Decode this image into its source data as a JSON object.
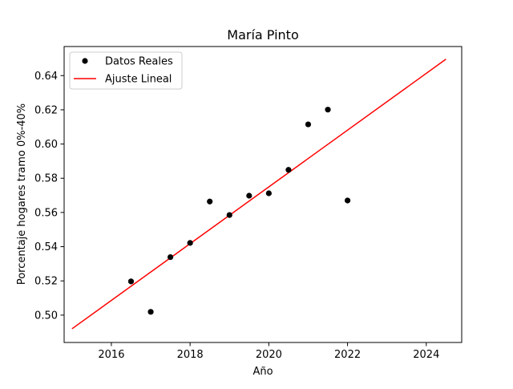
{
  "chart_data": {
    "type": "scatter",
    "title": "María Pinto",
    "xlabel": "Año",
    "ylabel": "Porcentaje hogares tramo 0%-40%",
    "xlim": [
      2014.8,
      2024.9
    ],
    "ylim": [
      0.484,
      0.657
    ],
    "xticks": [
      2016,
      2018,
      2020,
      2022,
      2024
    ],
    "yticks": [
      0.5,
      0.52,
      0.54,
      0.56,
      0.58,
      0.6,
      0.62,
      0.64
    ],
    "xtick_labels": [
      "2016",
      "2018",
      "2020",
      "2022",
      "2024"
    ],
    "ytick_labels": [
      "0.50",
      "0.52",
      "0.54",
      "0.56",
      "0.58",
      "0.60",
      "0.62",
      "0.64"
    ],
    "grid": false,
    "legend_position": "top-left",
    "series": [
      {
        "name": "Datos Reales",
        "kind": "scatter",
        "color": "#000000",
        "x": [
          2016.5,
          2017.0,
          2017.5,
          2018.0,
          2018.5,
          2019.0,
          2019.5,
          2020.0,
          2020.5,
          2021.0,
          2021.5,
          2022.0
        ],
        "y": [
          0.5197,
          0.5019,
          0.5339,
          0.5422,
          0.5664,
          0.5585,
          0.5698,
          0.5712,
          0.5849,
          0.6115,
          0.6201,
          0.567
        ]
      },
      {
        "name": "Ajuste Lineal",
        "kind": "line",
        "color": "#ff0000",
        "x": [
          2015.0,
          2024.5
        ],
        "y": [
          0.492,
          0.6496
        ]
      }
    ]
  }
}
